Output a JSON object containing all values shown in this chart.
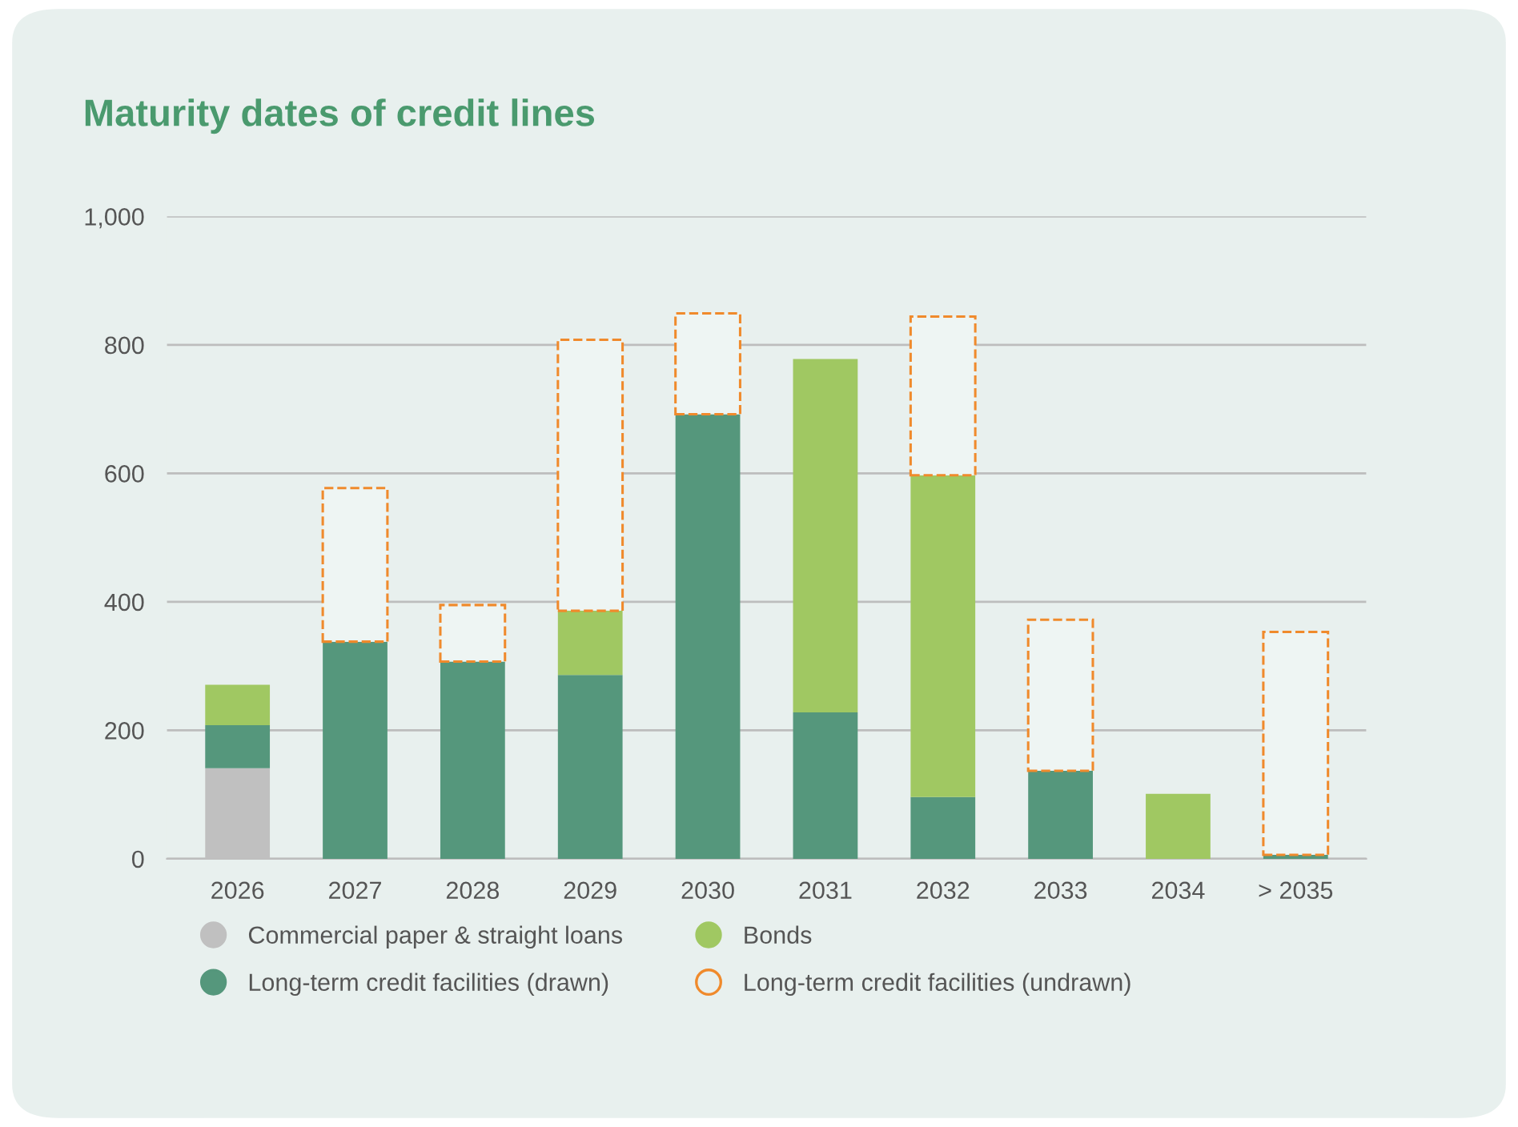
{
  "chart_data": {
    "type": "bar",
    "title": "Maturity dates of credit lines",
    "stacked": true,
    "categories": [
      "2026",
      "2027",
      "2028",
      "2029",
      "2030",
      "2031",
      "2032",
      "2033",
      "2034",
      "> 2035"
    ],
    "series": [
      {
        "name": "Commercial paper & straight loans",
        "color": "#c0c0c0",
        "values": [
          141,
          null,
          null,
          null,
          null,
          null,
          null,
          null,
          null,
          null
        ]
      },
      {
        "name": "Long-term credit facilities (drawn)",
        "color": "#55977c",
        "values": [
          67,
          338,
          307,
          286,
          692,
          228,
          96,
          137,
          null,
          6
        ]
      },
      {
        "name": "Bonds",
        "color": "#a0c862",
        "values": [
          63,
          null,
          null,
          100,
          null,
          550,
          501,
          null,
          101,
          null
        ]
      },
      {
        "name": "Long-term credit facilities (undrawn)",
        "color": "#f08a2c",
        "line_style": "dashed",
        "values": [
          null,
          239,
          88,
          422,
          157,
          null,
          247,
          235,
          null,
          347
        ]
      }
    ],
    "ylim": [
      0,
      1000
    ],
    "yticks": [
      0,
      200,
      400,
      600,
      800,
      {
        "value": 1000,
        "label": "1,000"
      }
    ],
    "grid": "y",
    "legend": "bottom"
  }
}
